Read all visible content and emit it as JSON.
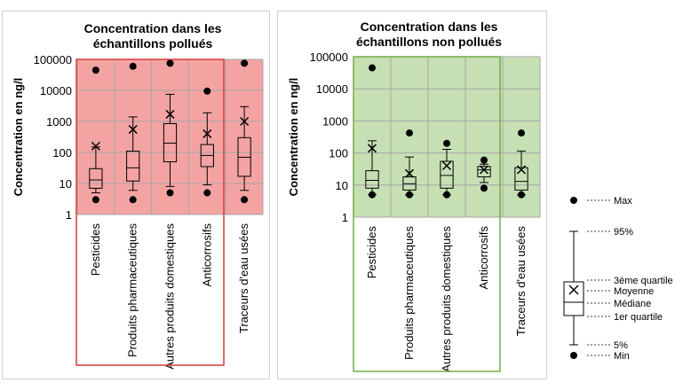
{
  "chart_data": [
    {
      "type": "boxplot",
      "title": "Concentration dans les échantillons pollués",
      "ylabel": "Concentration en ng/l",
      "yscale": "log",
      "ylim": [
        1,
        100000
      ],
      "yticks": [
        "1",
        "10",
        "100",
        "1000",
        "10000",
        "100000"
      ],
      "grid": true,
      "plot_color": "#f4a3a3",
      "highlight_border_color": "#d83b3b",
      "categories": [
        "Pesticides",
        "Produits pharmaceutiques",
        "Autres produits domestiques",
        "Anticorrosifs",
        "Traceurs d'eau usées"
      ],
      "boxes": [
        {
          "max": 45000,
          "p95": 150,
          "q3": 30,
          "mean": 160,
          "median": 13,
          "q1": 7,
          "p5": 5,
          "min": 3
        },
        {
          "max": 60000,
          "p95": 1400,
          "q3": 110,
          "mean": 550,
          "median": 32,
          "q1": 12,
          "p5": 6,
          "min": 3
        },
        {
          "max": 75000,
          "p95": 7500,
          "q3": 850,
          "mean": 1700,
          "median": 200,
          "q1": 50,
          "p5": 8,
          "min": 5
        },
        {
          "max": 9500,
          "p95": 1900,
          "q3": 180,
          "mean": 400,
          "median": 80,
          "q1": 35,
          "p5": 9,
          "min": 5
        },
        {
          "max": 75000,
          "p95": 3000,
          "q3": 300,
          "mean": 1000,
          "median": 70,
          "q1": 17,
          "p5": 6,
          "min": 3
        }
      ]
    },
    {
      "type": "boxplot",
      "title": "Concentration dans les échantillons non pollués",
      "ylabel": "Concentration en ng/l",
      "yscale": "log",
      "ylim": [
        1,
        100000
      ],
      "yticks": [
        "1",
        "10",
        "100",
        "1000",
        "10000",
        "100000"
      ],
      "grid": true,
      "plot_color": "#c6e0b4",
      "highlight_border_color": "#70ad47",
      "categories": [
        "Pesticides",
        "Produits pharmaceutiques",
        "Autres produits domestiques",
        "Anticorrosifs",
        "Traceurs d'eau usées"
      ],
      "boxes": [
        {
          "max": 45000,
          "p95": 240,
          "q3": 28,
          "mean": 140,
          "median": 14,
          "q1": 8,
          "p5": 5,
          "min": 5
        },
        {
          "max": 420,
          "p95": 75,
          "q3": 18,
          "mean": 23,
          "median": 11,
          "q1": 7,
          "p5": 5,
          "min": 5
        },
        {
          "max": 200,
          "p95": 130,
          "q3": 55,
          "mean": 40,
          "median": 20,
          "q1": 8,
          "p5": 5,
          "min": 5
        },
        {
          "max": 60,
          "p95": 45,
          "q3": 38,
          "mean": 30,
          "median": 30,
          "q1": 18,
          "p5": 12,
          "min": 8
        },
        {
          "max": 420,
          "p95": 115,
          "q3": 35,
          "mean": 30,
          "median": 13,
          "q1": 7,
          "p5": 5,
          "min": 5
        }
      ]
    }
  ],
  "legend": {
    "max": "Max",
    "p95": "95%",
    "q3": "3ème quartile",
    "mean": "Moyenne",
    "median": "Médiane",
    "q1": "1er quartile",
    "p5": "5%",
    "min": "Min"
  }
}
